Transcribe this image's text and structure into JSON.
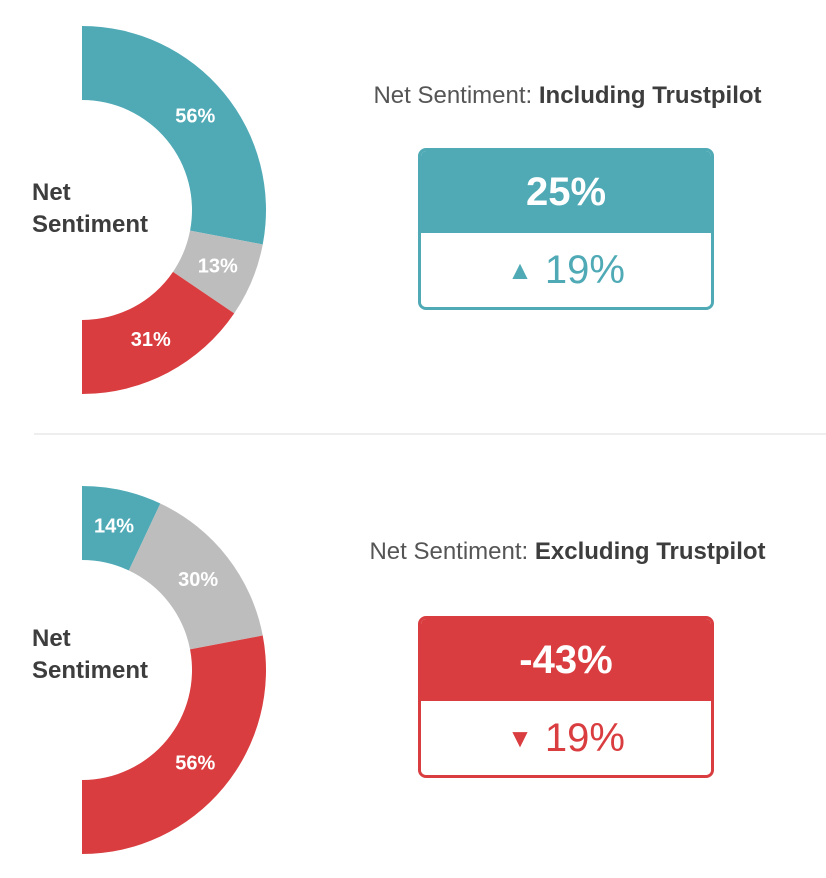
{
  "colors": {
    "teal": "#4faab6",
    "gray": "#bdbdbd",
    "red": "#d93d3f"
  },
  "chart_data": [
    {
      "type": "pie",
      "center_label": [
        "Net",
        "Sentiment"
      ],
      "slices": [
        {
          "value": 56,
          "label": "56%",
          "color": "teal"
        },
        {
          "value": 13,
          "label": "13%",
          "color": "gray"
        },
        {
          "value": 31,
          "label": "31%",
          "color": "red"
        }
      ]
    },
    {
      "type": "pie",
      "center_label": [
        "Net",
        "Sentiment"
      ],
      "slices": [
        {
          "value": 14,
          "label": "14%",
          "color": "teal"
        },
        {
          "value": 30,
          "label": "30%",
          "color": "gray"
        },
        {
          "value": 56,
          "label": "56%",
          "color": "red"
        }
      ]
    }
  ],
  "panels": [
    {
      "heading_prefix": "Net Sentiment: ",
      "heading_bold": "Including Trustpilot",
      "kpi_value": "25%",
      "change_arrow": "▲",
      "change_value": "19%"
    },
    {
      "heading_prefix": "Net Sentiment: ",
      "heading_bold": "Excluding Trustpilot",
      "kpi_value": "-43%",
      "change_arrow": "▼",
      "change_value": "19%"
    }
  ]
}
